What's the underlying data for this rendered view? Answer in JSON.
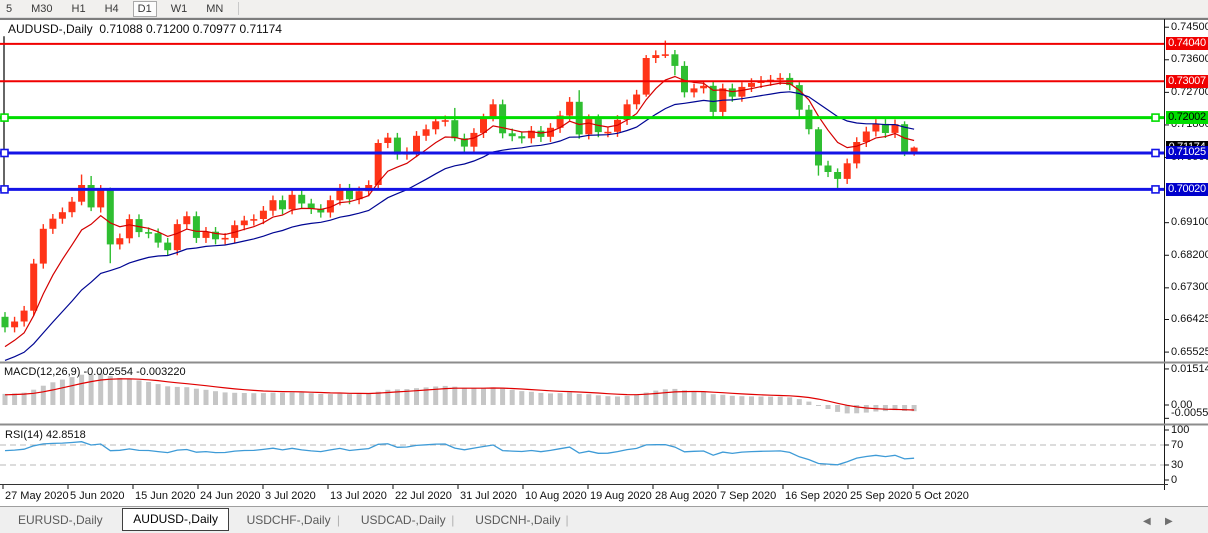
{
  "toolbar": {
    "timeframes": [
      {
        "label": "5",
        "active": false
      },
      {
        "label": "M30",
        "active": false
      },
      {
        "label": "H1",
        "active": false
      },
      {
        "label": "H4",
        "active": false
      },
      {
        "label": "D1",
        "active": true
      },
      {
        "label": "W1",
        "active": false
      },
      {
        "label": "MN",
        "active": false
      }
    ]
  },
  "chart": {
    "title_text": "AUDUSD-,Daily  0.71088 0.71200 0.70977 0.71174",
    "symbol": "AUDUSD-",
    "period": "Daily",
    "ohlc": {
      "open": "0.71088",
      "high": "0.71200",
      "low": "0.70977",
      "close": "0.71174"
    }
  },
  "price_axis": {
    "ticks": [
      {
        "text": "0.74500",
        "price": 0.745
      },
      {
        "text": "0.73600",
        "price": 0.736
      },
      {
        "text": "0.72700",
        "price": 0.727
      },
      {
        "text": "0.71800",
        "price": 0.718
      },
      {
        "text": "0.70900",
        "price": 0.709
      },
      {
        "text": "0.69100",
        "price": 0.691
      },
      {
        "text": "0.68200",
        "price": 0.682
      },
      {
        "text": "0.67300",
        "price": 0.673
      },
      {
        "text": "0.66425",
        "price": 0.66425
      },
      {
        "text": "0.65525",
        "price": 0.65525
      }
    ],
    "current_badge": {
      "text": "0.71174",
      "price": 0.71174,
      "bg": "#000000",
      "fg": "#ffffff"
    }
  },
  "indicators": {
    "macd": {
      "label_text": "MACD(12,26,9) -0.002554 -0.003220",
      "name": "MACD(12,26,9)",
      "value_main": "-0.002554",
      "value_signal": "-0.003220",
      "axis_labels": [
        {
          "text": "0.015142",
          "value": 0.015142
        },
        {
          "text": "0.00",
          "value": 0.0
        },
        {
          "text": "-0.005595",
          "value": -0.005595
        }
      ]
    },
    "rsi": {
      "label_text": "RSI(14) 42.8518",
      "name": "RSI(14)",
      "value": "42.8518",
      "axis_labels": [
        {
          "text": "100",
          "value": 100
        },
        {
          "text": "70",
          "value": 70
        },
        {
          "text": "30",
          "value": 30
        },
        {
          "text": "0",
          "value": 0
        }
      ]
    }
  },
  "tabs": {
    "items": [
      {
        "label": "EURUSD-,Daily",
        "active": false
      },
      {
        "label": "AUDUSD-,Daily",
        "active": true
      },
      {
        "label": "USDCHF-,Daily",
        "active": false
      },
      {
        "label": "USDCAD-,Daily",
        "active": false
      },
      {
        "label": "USDCNH-,Daily",
        "active": false
      }
    ]
  },
  "chart_data": {
    "type": "candlestick",
    "symbol": "AUDUSD-",
    "timeframe": "Daily",
    "first_open": 0.665,
    "closes": [
      0.6621,
      0.6637,
      0.6667,
      0.6797,
      0.6893,
      0.6921,
      0.6939,
      0.6968,
      0.7014,
      0.6952,
      0.7001,
      0.685,
      0.6867,
      0.692,
      0.6884,
      0.6881,
      0.6855,
      0.6834,
      0.6906,
      0.6928,
      0.6868,
      0.6885,
      0.6864,
      0.6868,
      0.6903,
      0.6916,
      0.692,
      0.6943,
      0.6972,
      0.6947,
      0.6987,
      0.6963,
      0.6948,
      0.6938,
      0.6972,
      0.7004,
      0.6975,
      0.6997,
      0.7014,
      0.713,
      0.7145,
      0.7098,
      0.7105,
      0.715,
      0.7168,
      0.719,
      0.7193,
      0.7143,
      0.712,
      0.7158,
      0.7198,
      0.7237,
      0.7157,
      0.7149,
      0.7143,
      0.7164,
      0.7147,
      0.7172,
      0.7206,
      0.7244,
      0.7154,
      0.7196,
      0.716,
      0.7161,
      0.7194,
      0.7237,
      0.7264,
      0.7365,
      0.7373,
      0.7375,
      0.7343,
      0.727,
      0.7281,
      0.7288,
      0.7216,
      0.7281,
      0.7258,
      0.7285,
      0.7296,
      0.7302,
      0.7305,
      0.731,
      0.729,
      0.7222,
      0.7168,
      0.7068,
      0.705,
      0.7031,
      0.7074,
      0.7133,
      0.7162,
      0.7183,
      0.7158,
      0.7182,
      0.7106,
      0.71174
    ],
    "wick_default": {
      "up": 0.0013,
      "down": 0.0014
    },
    "wick_overrides": {
      "8": [
        0.0029,
        0.001
      ],
      "9": [
        0.0025,
        0.001
      ],
      "11": [
        0.0006,
        0.0052
      ],
      "39": [
        0.001,
        0.0008
      ],
      "47": [
        0.0034,
        0.0008
      ],
      "51": [
        0.0014,
        0.0008
      ],
      "60": [
        0.0032,
        0.0012
      ],
      "67": [
        0.0008,
        0.0006
      ],
      "69": [
        0.0038,
        0.0008
      ],
      "70": [
        0.0012,
        0.0026
      ],
      "83": [
        0.0008,
        0.002
      ],
      "85": [
        0.0006,
        0.0028
      ],
      "87": [
        0.001,
        0.0025
      ],
      "94": [
        0.0008,
        0.0012
      ],
      "95": [
        0.0003,
        0.0011
      ]
    },
    "candle_colors": {
      "up": "#ff3418",
      "down": "#2fbe31"
    },
    "horizontal_lines": [
      {
        "price": 0.7404,
        "label": "0.74040",
        "color": "#f00000",
        "thickness": 2,
        "badge_bg": "#f00000",
        "badge_fg": "#ffffff",
        "markers": false
      },
      {
        "price": 0.73007,
        "label": "0.73007",
        "color": "#f00000",
        "thickness": 2,
        "badge_bg": "#f00000",
        "badge_fg": "#ffffff",
        "markers": false
      },
      {
        "price": 0.72002,
        "label": "0.72002",
        "color": "#00dd00",
        "thickness": 3,
        "badge_bg": "#00dd00",
        "badge_fg": "#000000",
        "markers": true
      },
      {
        "price": 0.71025,
        "label": "0.71025",
        "color": "#1414e6",
        "thickness": 3,
        "badge_bg": "#0000cc",
        "badge_fg": "#ffffff",
        "markers": true
      },
      {
        "price": 0.7002,
        "label": "0.70020",
        "color": "#1414e6",
        "thickness": 3,
        "badge_bg": "#0000cc",
        "badge_fg": "#ffffff",
        "markers": true
      }
    ],
    "current_price": 0.71174,
    "vertical_line": {
      "bar_index": 0,
      "from_price": 0.7425,
      "to_price": 0.7,
      "color": "#000000"
    },
    "moving_averages": [
      {
        "name": "fast-ema",
        "period": 7,
        "seed": 0.655,
        "color": "#d40000"
      },
      {
        "name": "slow-ema",
        "period": 20,
        "seed": 0.652,
        "color": "#000693"
      }
    ],
    "macd": {
      "fast": 12,
      "slow": 26,
      "signal": 9,
      "seeds": {
        "fast_ema": 0.656,
        "slow_ema": 0.6515,
        "signal": 0.0042
      },
      "current_main": -0.002554,
      "current_signal": -0.00322,
      "axis_max": 0.015142,
      "axis_min": -0.005595,
      "histogram_color": "#c6c6c6",
      "signal_color": "#e00000"
    },
    "rsi": {
      "period": 14,
      "current": 42.8518,
      "levels": [
        70,
        30
      ],
      "seed_gain": 0.003,
      "seed_loss": 0.0021,
      "color": "#3e9bd7",
      "level_color": "#b8b8b8"
    },
    "date_ticks": [
      "27 May 2020",
      "5 Jun 2020",
      "15 Jun 2020",
      "24 Jun 2020",
      "3 Jul 2020",
      "13 Jul 2020",
      "22 Jul 2020",
      "31 Jul 2020",
      "10 Aug 2020",
      "19 Aug 2020",
      "28 Aug 2020",
      "7 Sep 2020",
      "16 Sep 2020",
      "25 Sep 2020",
      "5 Oct 2020"
    ]
  }
}
